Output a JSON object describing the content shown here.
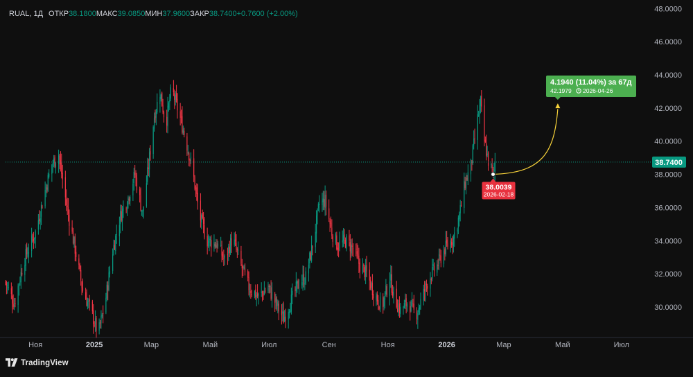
{
  "legend": {
    "symbol": "RUAL, 1Д",
    "open_label": "ОТКР",
    "open_value": "38.1800",
    "high_label": "МАКС",
    "high_value": "39.0850",
    "low_label": "МИН",
    "low_value": "37.9600",
    "close_label": "ЗАКР",
    "close_value": "38.7400",
    "change": "+0.7600 (+2.00%)"
  },
  "colors": {
    "background": "#0f0f0f",
    "up": "#089981",
    "down": "#f23645",
    "axis_text": "#b2b5be",
    "price_line": "#089981",
    "forecast_curve": "#f7d23a",
    "target_box": "#4caf50",
    "source_box": "#e8323f"
  },
  "watermark": {
    "text": "TradingView",
    "icon": "tradingview-logo-icon"
  },
  "price_marker": "38.7400",
  "forecast": {
    "source_price": "38.0039",
    "source_date": "2026-02-18",
    "target_summary": "4.1940 (11.04%) за 67д",
    "target_price": "42.1979",
    "target_date": "2026-04-26",
    "clock_icon": "clock-icon"
  },
  "chart_data": {
    "type": "candlestick",
    "y_ticks": [
      "30.0000",
      "32.0000",
      "34.0000",
      "36.0000",
      "38.0000",
      "40.0000",
      "42.0000",
      "44.0000",
      "46.0000",
      "48.0000"
    ],
    "x_ticks": [
      "Ноя",
      "2025",
      "Мар",
      "Май",
      "Июл",
      "Сен",
      "Ноя",
      "2026",
      "Мар",
      "Май",
      "Июл"
    ],
    "bold_x_ticks": [
      "2025",
      "2026"
    ],
    "ylim": [
      28.2,
      48.1
    ],
    "last_close": 38.74,
    "grid": false,
    "price_path": [
      [
        "2024-10-01",
        31.5
      ],
      [
        "2024-10-10",
        30.2
      ],
      [
        "2024-10-20",
        32.8
      ],
      [
        "2024-11-01",
        34.5
      ],
      [
        "2024-11-10",
        36.8
      ],
      [
        "2024-11-18",
        38.6
      ],
      [
        "2024-11-25",
        39.2
      ],
      [
        "2024-12-03",
        36.2
      ],
      [
        "2024-12-12",
        33.5
      ],
      [
        "2024-12-20",
        31.0
      ],
      [
        "2024-12-27",
        30.0
      ],
      [
        "2025-01-05",
        28.4
      ],
      [
        "2025-01-12",
        30.2
      ],
      [
        "2025-01-20",
        33.4
      ],
      [
        "2025-01-28",
        35.5
      ],
      [
        "2025-02-05",
        36.6
      ],
      [
        "2025-02-12",
        38.0
      ],
      [
        "2025-02-20",
        35.6
      ],
      [
        "2025-02-26",
        38.5
      ],
      [
        "2025-03-04",
        41.5
      ],
      [
        "2025-03-10",
        43.0
      ],
      [
        "2025-03-16",
        41.0
      ],
      [
        "2025-03-22",
        43.2
      ],
      [
        "2025-03-28",
        42.0
      ],
      [
        "2025-04-04",
        40.5
      ],
      [
        "2025-04-12",
        38.5
      ],
      [
        "2025-04-20",
        35.5
      ],
      [
        "2025-04-28",
        34.0
      ],
      [
        "2025-05-08",
        33.8
      ],
      [
        "2025-05-16",
        32.8
      ],
      [
        "2025-05-24",
        34.2
      ],
      [
        "2025-06-02",
        32.5
      ],
      [
        "2025-06-10",
        31.2
      ],
      [
        "2025-06-20",
        30.6
      ],
      [
        "2025-06-30",
        31.2
      ],
      [
        "2025-07-08",
        30.2
      ],
      [
        "2025-07-16",
        29.3
      ],
      [
        "2025-07-24",
        30.4
      ],
      [
        "2025-08-01",
        31.5
      ],
      [
        "2025-08-08",
        31.8
      ],
      [
        "2025-08-16",
        34.0
      ],
      [
        "2025-08-22",
        36.2
      ],
      [
        "2025-08-28",
        36.4
      ],
      [
        "2025-09-04",
        34.5
      ],
      [
        "2025-09-10",
        33.7
      ],
      [
        "2025-09-18",
        34.0
      ],
      [
        "2025-09-26",
        33.5
      ],
      [
        "2025-10-03",
        32.5
      ],
      [
        "2025-10-10",
        32.0
      ],
      [
        "2025-10-18",
        30.8
      ],
      [
        "2025-10-26",
        30.0
      ],
      [
        "2025-11-03",
        31.8
      ],
      [
        "2025-11-08",
        30.5
      ],
      [
        "2025-11-14",
        29.8
      ],
      [
        "2025-11-22",
        30.3
      ],
      [
        "2025-11-30",
        29.5
      ],
      [
        "2025-12-06",
        30.5
      ],
      [
        "2025-12-14",
        31.8
      ],
      [
        "2025-12-22",
        32.5
      ],
      [
        "2025-12-30",
        33.5
      ],
      [
        "2026-01-08",
        34.2
      ],
      [
        "2026-01-14",
        35.5
      ],
      [
        "2026-01-20",
        37.5
      ],
      [
        "2026-01-26",
        38.5
      ],
      [
        "2026-02-01",
        41.0
      ],
      [
        "2026-02-05",
        42.3
      ],
      [
        "2026-02-09",
        40.0
      ],
      [
        "2026-02-13",
        38.8
      ],
      [
        "2026-02-18",
        38.0
      ],
      [
        "2026-02-22",
        38.74
      ]
    ]
  }
}
